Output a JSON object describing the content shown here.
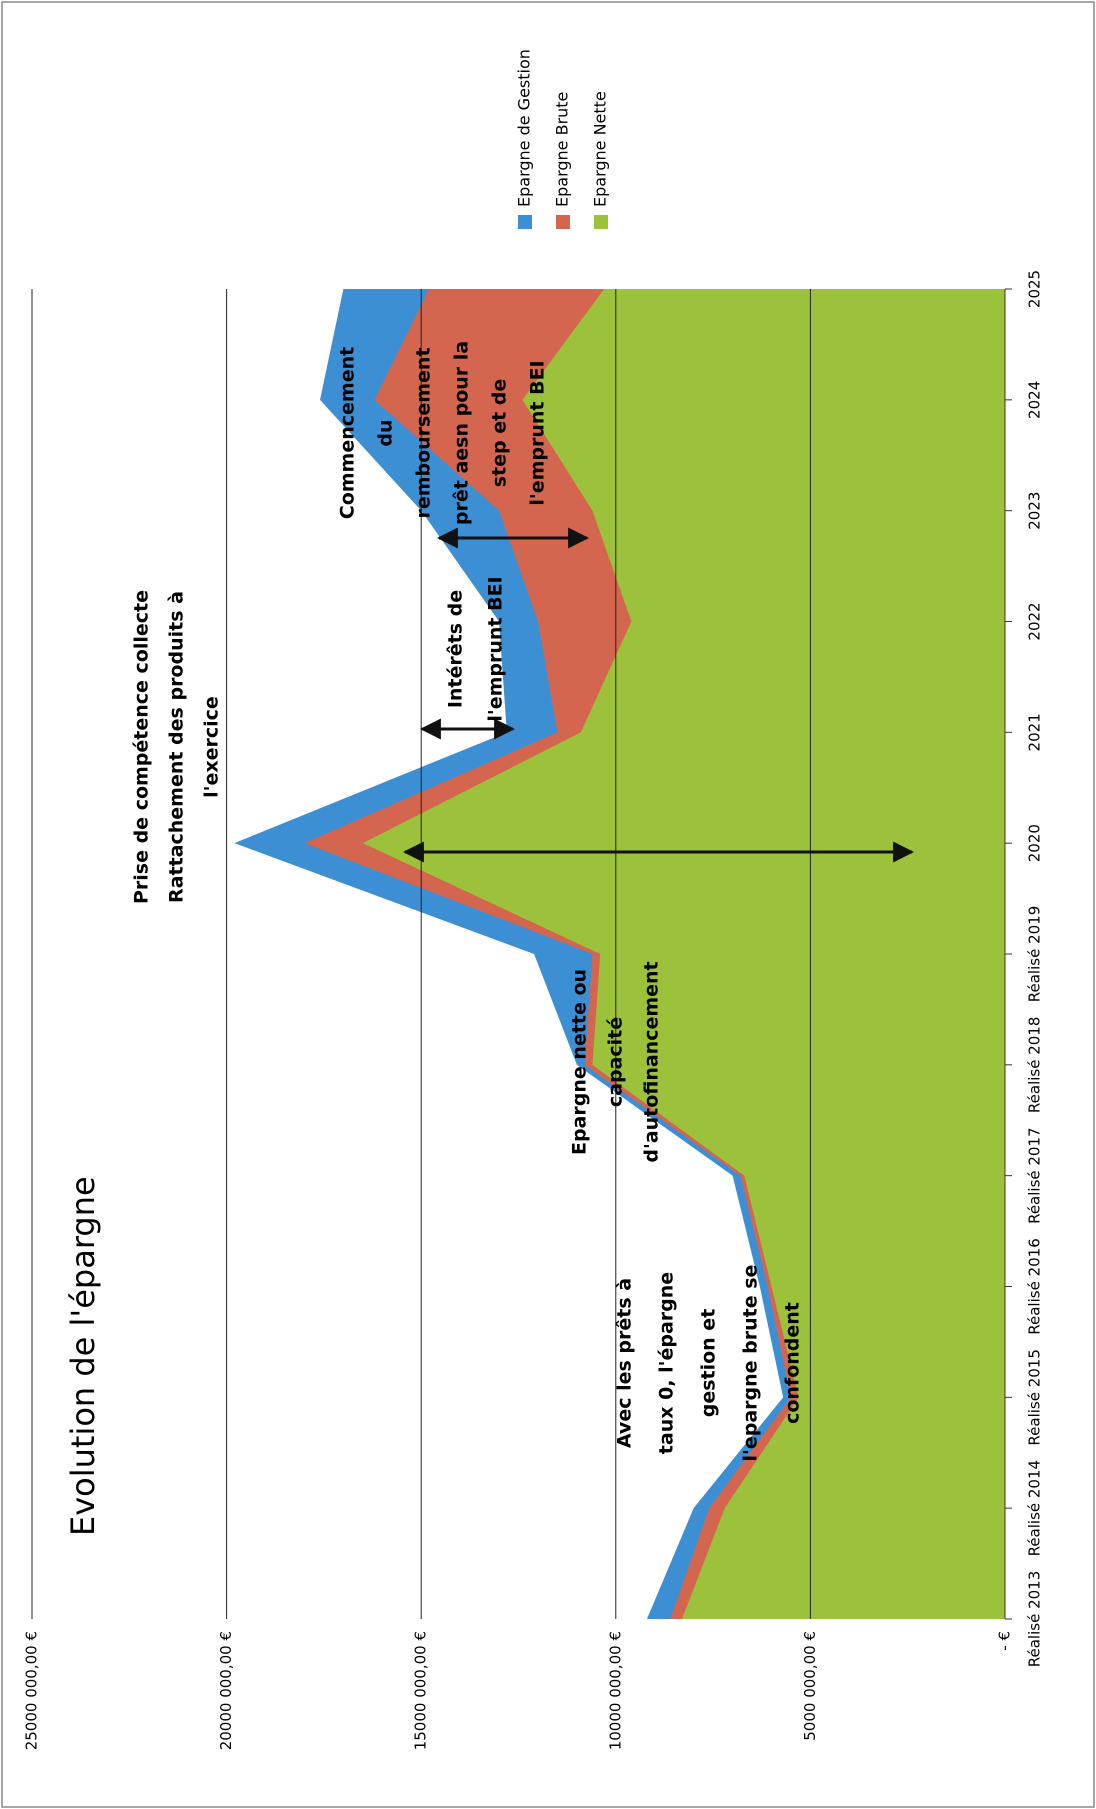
{
  "chart_data": {
    "type": "area",
    "title": "Evolution de l'épargne",
    "categories": [
      "Réalisé 2013",
      "Réalisé 2014",
      "Réalisé 2015",
      "Réalisé 2016",
      "Réalisé 2017",
      "Réalisé 2018",
      "Réalisé 2019",
      "2020",
      "2021",
      "2022",
      "2023",
      "2024",
      "2025"
    ],
    "series": [
      {
        "name": "Epargne de Gestion",
        "color": "#3d8fd4",
        "values": [
          9200000,
          8000000,
          5700000,
          6300000,
          7000000,
          11000000,
          12100000,
          19800000,
          12800000,
          13000000,
          15000000,
          17600000,
          17000000
        ]
      },
      {
        "name": "Epargne Brute",
        "color": "#d4654e",
        "values": [
          8600000,
          7600000,
          5500000,
          6100000,
          6800000,
          10800000,
          10600000,
          18000000,
          11500000,
          12000000,
          13000000,
          16200000,
          14800000
        ]
      },
      {
        "name": "Epargne Nette",
        "color": "#9cc13a",
        "values": [
          8300000,
          7200000,
          5300000,
          6000000,
          6700000,
          10600000,
          10400000,
          16500000,
          10900000,
          9600000,
          10600000,
          12400000,
          10300000
        ]
      }
    ],
    "ylim": [
      0,
      25000000
    ],
    "yticks": [
      {
        "value": 0,
        "label": "-   €"
      },
      {
        "value": 5000000,
        "label": "5000 000,00 €"
      },
      {
        "value": 10000000,
        "label": "10000 000,00 €"
      },
      {
        "value": 15000000,
        "label": "15000 000,00 €"
      },
      {
        "value": 20000000,
        "label": "20000 000,00 €"
      },
      {
        "value": 25000000,
        "label": "25000 000,00 €"
      }
    ],
    "grid": true,
    "legend": "right",
    "annotations": [
      {
        "lines": [
          "Prise de compétence collecte",
          "Rattachement des produits à",
          "l'exercice"
        ]
      },
      {
        "lines": [
          "Avec les prêts à",
          "taux 0, l'épargne",
          "gestion et",
          "l'epargne brute se",
          "confondent"
        ]
      },
      {
        "lines": [
          "Epargne nette ou",
          "capacité",
          "d'autofinancement"
        ]
      },
      {
        "lines": [
          "Intérêts de",
          "l'emprunt BEI"
        ]
      },
      {
        "lines": [
          "Commencement",
          "du",
          "remboursement",
          "prêt aesn pour la",
          "step et de",
          "l'emprunt BEI"
        ]
      }
    ]
  }
}
